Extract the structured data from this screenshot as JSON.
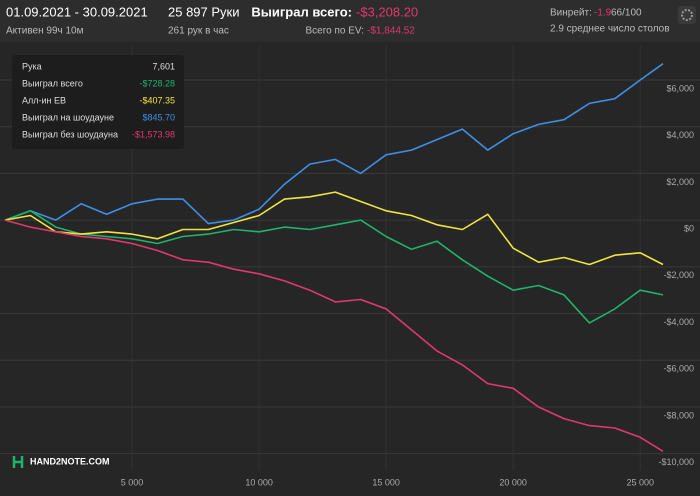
{
  "header": {
    "period": "01.09.2021 - 30.09.2021",
    "active": "Активен 99ч 10м",
    "hands": "25 897 Руки",
    "rate": "261 рук в час",
    "won_label": "Выиграл всего:",
    "won_value": "-$3,208.20",
    "ev_label": "Всего по EV:",
    "ev_value": "-$1,844.52",
    "winrate_label": "Винрейт:",
    "winrate_value": "-1.9",
    "winrate_unit": "66/100",
    "tables": "2.9 среднее число столов"
  },
  "tooltip": {
    "rows": [
      [
        "Рука",
        "7,601"
      ],
      [
        "Выиграл всего",
        "-$728.28"
      ],
      [
        "Алл-ин EB",
        "-$407.35"
      ],
      [
        "Выиграл на шоудауне",
        "$845.70"
      ],
      [
        "Выиграл без шоудауна",
        "-$1,573.98"
      ]
    ],
    "colors": [
      "#dddddd",
      "#1fb36b",
      "#f0e442",
      "#3d8fe6",
      "#e0386d"
    ]
  },
  "logo": "HAND2NOTE.COM",
  "chart_data": {
    "type": "line",
    "x": [
      0,
      1000,
      2000,
      3000,
      4000,
      5000,
      6000,
      7000,
      8000,
      9000,
      10000,
      11000,
      12000,
      13000,
      14000,
      15000,
      16000,
      17000,
      18000,
      19000,
      20000,
      21000,
      22000,
      23000,
      24000,
      25000,
      25897
    ],
    "series": [
      {
        "name": "Выиграл на шоудауне",
        "color": "#3d8fe6",
        "values": [
          0,
          400,
          0,
          700,
          250,
          700,
          900,
          900,
          -150,
          0,
          470,
          1540,
          2400,
          2600,
          2000,
          2800,
          3000,
          3450,
          3900,
          3000,
          3700,
          4100,
          4300,
          5000,
          5200,
          6000,
          6700
        ]
      },
      {
        "name": "Выиграл всего",
        "color": "#1fb36b",
        "values": [
          0,
          400,
          -300,
          -600,
          -700,
          -800,
          -1000,
          -700,
          -600,
          -400,
          -500,
          -300,
          -400,
          -200,
          0,
          -700,
          -1250,
          -900,
          -1700,
          -2400,
          -3000,
          -2800,
          -3200,
          -4400,
          -3800,
          -3000,
          -3200
        ]
      },
      {
        "name": "Алл-ин EB",
        "color": "#f0e442",
        "values": [
          0,
          200,
          -500,
          -600,
          -500,
          -600,
          -800,
          -400,
          -400,
          -100,
          200,
          900,
          1000,
          1200,
          800,
          400,
          200,
          -200,
          -400,
          250,
          -1200,
          -1800,
          -1600,
          -1900,
          -1500,
          -1400,
          -1900
        ]
      },
      {
        "name": "Выиграл без шоудауна",
        "color": "#e0386d",
        "values": [
          0,
          -300,
          -500,
          -700,
          -800,
          -1000,
          -1300,
          -1700,
          -1800,
          -2100,
          -2300,
          -2600,
          -3000,
          -3500,
          -3400,
          -3800,
          -4700,
          -5600,
          -6200,
          -7000,
          -7200,
          -8000,
          -8500,
          -8800,
          -8900,
          -9300,
          -9900
        ]
      }
    ],
    "xlim": [
      0,
      25897
    ],
    "ylim": [
      -10700,
      7500
    ],
    "xticks": [
      {
        "value": 5000,
        "label": "5 000"
      },
      {
        "value": 10000,
        "label": "10 000"
      },
      {
        "value": 15000,
        "label": "15 000"
      },
      {
        "value": 20000,
        "label": "20 000"
      },
      {
        "value": 25000,
        "label": "25 000"
      }
    ],
    "yticks": [
      {
        "value": 6000,
        "label": "$6,000"
      },
      {
        "value": 4000,
        "label": "$4,000"
      },
      {
        "value": 2000,
        "label": "$2,000"
      },
      {
        "value": 0,
        "label": "$0"
      },
      {
        "value": -2000,
        "label": "-$2,000"
      },
      {
        "value": -4000,
        "label": "-$4,000"
      },
      {
        "value": -6000,
        "label": "-$6,000"
      },
      {
        "value": -8000,
        "label": "-$8,000"
      },
      {
        "value": -10000,
        "label": "-$10,000"
      }
    ],
    "grid": true
  }
}
